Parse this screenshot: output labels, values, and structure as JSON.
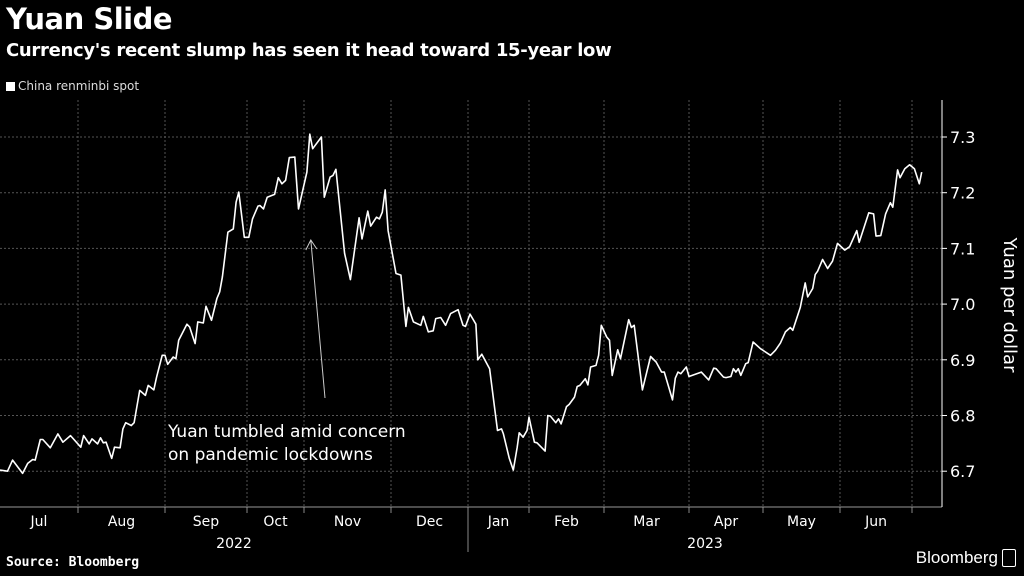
{
  "title": "Yuan Slide",
  "subtitle": "Currency's recent slump has seen it head toward 15-year low",
  "source": "Source: Bloomberg",
  "logo": "Bloomberg",
  "chart_data": {
    "type": "line",
    "title": "Yuan Slide",
    "subtitle": "Currency's recent slump has seen it head toward 15-year low",
    "ylabel": "Yuan per dollar",
    "ylim": [
      6.62,
      7.37
    ],
    "yticks": [
      "6.7",
      "6.8",
      "6.9",
      "7.0",
      "7.1",
      "7.2",
      "7.3"
    ],
    "xticks": [
      {
        "label": "Jul",
        "date": "2022-07"
      },
      {
        "label": "Aug",
        "date": "2022-08"
      },
      {
        "label": "Sep",
        "date": "2022-09"
      },
      {
        "label": "Oct",
        "date": "2022-10"
      },
      {
        "label": "Nov",
        "date": "2022-11"
      },
      {
        "label": "Dec",
        "date": "2022-12"
      },
      {
        "label": "Jan",
        "date": "2023-01"
      },
      {
        "label": "Feb",
        "date": "2023-02"
      },
      {
        "label": "Mar",
        "date": "2023-03"
      },
      {
        "label": "Apr",
        "date": "2023-04"
      },
      {
        "label": "May",
        "date": "2023-05"
      },
      {
        "label": "Jun",
        "date": "2023-06"
      }
    ],
    "years": [
      "2022",
      "2023"
    ],
    "grid": true,
    "axis_side": "right",
    "legend_position": "top-left",
    "annotation": {
      "lines": [
        "Yuan tumbled amid concern",
        "on pandemic lockdowns"
      ],
      "arrow_to_date": "2022-10-27"
    },
    "colors": {
      "background": "#000000",
      "line": "#ffffff",
      "grid": "#555555"
    },
    "series": [
      {
        "name": "China renminbi spot",
        "points": [
          [
            "2022-07-01",
            6.702
          ],
          [
            "2022-07-04",
            6.7
          ],
          [
            "2022-07-06",
            6.72
          ],
          [
            "2022-07-10",
            6.696
          ],
          [
            "2022-07-12",
            6.714
          ],
          [
            "2022-07-14",
            6.721
          ],
          [
            "2022-07-15",
            6.72
          ],
          [
            "2022-07-17",
            6.757
          ],
          [
            "2022-07-18",
            6.757
          ],
          [
            "2022-07-21",
            6.742
          ],
          [
            "2022-07-24",
            6.767
          ],
          [
            "2022-07-26",
            6.752
          ],
          [
            "2022-07-29",
            6.764
          ],
          [
            "2022-08-02",
            6.743
          ],
          [
            "2022-08-03",
            6.764
          ],
          [
            "2022-08-05",
            6.749
          ],
          [
            "2022-08-06",
            6.758
          ],
          [
            "2022-08-08",
            6.749
          ],
          [
            "2022-08-09",
            6.76
          ],
          [
            "2022-08-10",
            6.751
          ],
          [
            "2022-08-11",
            6.752
          ],
          [
            "2022-08-13",
            6.723
          ],
          [
            "2022-08-14",
            6.743
          ],
          [
            "2022-08-16",
            6.742
          ],
          [
            "2022-08-17",
            6.776
          ],
          [
            "2022-08-18",
            6.787
          ],
          [
            "2022-08-20",
            6.782
          ],
          [
            "2022-08-21",
            6.787
          ],
          [
            "2022-08-23",
            6.845
          ],
          [
            "2022-08-25",
            6.836
          ],
          [
            "2022-08-26",
            6.854
          ],
          [
            "2022-08-28",
            6.846
          ],
          [
            "2022-08-29",
            6.869
          ],
          [
            "2022-08-31",
            6.908
          ],
          [
            "2022-09-01",
            6.908
          ],
          [
            "2022-09-02",
            6.892
          ],
          [
            "2022-09-04",
            6.905
          ],
          [
            "2022-09-05",
            6.902
          ],
          [
            "2022-09-06",
            6.935
          ],
          [
            "2022-09-09",
            6.964
          ],
          [
            "2022-09-10",
            6.959
          ],
          [
            "2022-09-12",
            6.929
          ],
          [
            "2022-09-13",
            6.968
          ],
          [
            "2022-09-15",
            6.966
          ],
          [
            "2022-09-16",
            6.996
          ],
          [
            "2022-09-18",
            6.971
          ],
          [
            "2022-09-20",
            7.01
          ],
          [
            "2022-09-21",
            7.022
          ],
          [
            "2022-09-22",
            7.049
          ],
          [
            "2022-09-24",
            7.129
          ],
          [
            "2022-09-26",
            7.135
          ],
          [
            "2022-09-27",
            7.183
          ],
          [
            "2022-09-28",
            7.201
          ],
          [
            "2022-09-30",
            7.12
          ],
          [
            "2022-10-02",
            7.12
          ],
          [
            "2022-10-04",
            7.153
          ],
          [
            "2022-10-07",
            7.176
          ],
          [
            "2022-10-08",
            7.177
          ],
          [
            "2022-10-10",
            7.171
          ],
          [
            "2022-10-12",
            7.192
          ],
          [
            "2022-10-16",
            7.197
          ],
          [
            "2022-10-18",
            7.227
          ],
          [
            "2022-10-20",
            7.216
          ],
          [
            "2022-10-22",
            7.222
          ],
          [
            "2022-10-24",
            7.263
          ],
          [
            "2022-10-27",
            7.264
          ],
          [
            "2022-10-29",
            7.171
          ],
          [
            "2022-11-02",
            7.237
          ],
          [
            "2022-11-03",
            7.305
          ],
          [
            "2022-11-04",
            7.279
          ],
          [
            "2022-11-07",
            7.3
          ],
          [
            "2022-11-08",
            7.192
          ],
          [
            "2022-11-10",
            7.228
          ],
          [
            "2022-11-11",
            7.231
          ],
          [
            "2022-11-12",
            7.242
          ],
          [
            "2022-11-15",
            7.091
          ],
          [
            "2022-11-17",
            7.044
          ],
          [
            "2022-11-20",
            7.155
          ],
          [
            "2022-11-21",
            7.117
          ],
          [
            "2022-11-23",
            7.167
          ],
          [
            "2022-11-24",
            7.14
          ],
          [
            "2022-11-26",
            7.156
          ],
          [
            "2022-11-27",
            7.153
          ],
          [
            "2022-11-28",
            7.165
          ],
          [
            "2022-11-29",
            7.205
          ],
          [
            "2022-11-30",
            7.132
          ],
          [
            "2022-12-03",
            7.055
          ],
          [
            "2022-12-05",
            7.052
          ],
          [
            "2022-12-07",
            6.96
          ],
          [
            "2022-12-08",
            6.994
          ],
          [
            "2022-12-10",
            6.968
          ],
          [
            "2022-12-13",
            6.962
          ],
          [
            "2022-12-14",
            6.978
          ],
          [
            "2022-12-16",
            6.95
          ],
          [
            "2022-12-18",
            6.952
          ],
          [
            "2022-12-19",
            6.974
          ],
          [
            "2022-12-21",
            6.976
          ],
          [
            "2022-12-23",
            6.962
          ],
          [
            "2022-12-25",
            6.983
          ],
          [
            "2022-12-28",
            6.99
          ],
          [
            "2022-12-30",
            6.962
          ],
          [
            "2022-12-31",
            6.96
          ],
          [
            "2023-01-02",
            6.982
          ],
          [
            "2023-01-05",
            6.964
          ],
          [
            "2023-01-06",
            6.9
          ],
          [
            "2023-01-08",
            6.91
          ],
          [
            "2023-01-12",
            6.884
          ],
          [
            "2023-01-16",
            6.773
          ],
          [
            "2023-01-18",
            6.776
          ],
          [
            "2023-01-19",
            6.767
          ],
          [
            "2023-01-22",
            6.723
          ],
          [
            "2023-01-24",
            6.702
          ],
          [
            "2023-01-26",
            6.743
          ],
          [
            "2023-01-27",
            6.769
          ],
          [
            "2023-01-29",
            6.761
          ],
          [
            "2023-01-31",
            6.773
          ],
          [
            "2023-02-01",
            6.797
          ],
          [
            "2023-02-03",
            6.752
          ],
          [
            "2023-02-04",
            6.751
          ],
          [
            "2023-02-07",
            6.736
          ],
          [
            "2023-02-08",
            6.8
          ],
          [
            "2023-02-09",
            6.799
          ],
          [
            "2023-02-11",
            6.787
          ],
          [
            "2023-02-12",
            6.794
          ],
          [
            "2023-02-13",
            6.785
          ],
          [
            "2023-02-15",
            6.816
          ],
          [
            "2023-02-16",
            6.82
          ],
          [
            "2023-02-18",
            6.833
          ],
          [
            "2023-02-19",
            6.852
          ],
          [
            "2023-02-20",
            6.854
          ],
          [
            "2023-02-22",
            6.866
          ],
          [
            "2023-02-23",
            6.855
          ],
          [
            "2023-02-24",
            6.887
          ],
          [
            "2023-02-26",
            6.89
          ],
          [
            "2023-02-27",
            6.908
          ],
          [
            "2023-02-28",
            6.962
          ],
          [
            "2023-03-02",
            6.941
          ],
          [
            "2023-03-03",
            6.935
          ],
          [
            "2023-03-04",
            6.872
          ],
          [
            "2023-03-06",
            6.918
          ],
          [
            "2023-03-07",
            6.902
          ],
          [
            "2023-03-10",
            6.972
          ],
          [
            "2023-03-11",
            6.958
          ],
          [
            "2023-03-12",
            6.962
          ],
          [
            "2023-03-15",
            6.846
          ],
          [
            "2023-03-18",
            6.906
          ],
          [
            "2023-03-20",
            6.896
          ],
          [
            "2023-03-22",
            6.878
          ],
          [
            "2023-03-23",
            6.878
          ],
          [
            "2023-03-26",
            6.828
          ],
          [
            "2023-03-27",
            6.867
          ],
          [
            "2023-03-28",
            6.878
          ],
          [
            "2023-03-29",
            6.875
          ],
          [
            "2023-03-31",
            6.887
          ],
          [
            "2023-04-01",
            6.87
          ],
          [
            "2023-04-06",
            6.878
          ],
          [
            "2023-04-09",
            6.864
          ],
          [
            "2023-04-11",
            6.885
          ],
          [
            "2023-04-12",
            6.884
          ],
          [
            "2023-04-15",
            6.869
          ],
          [
            "2023-04-16",
            6.868
          ],
          [
            "2023-04-18",
            6.87
          ],
          [
            "2023-04-19",
            6.884
          ],
          [
            "2023-04-20",
            6.878
          ],
          [
            "2023-04-21",
            6.884
          ],
          [
            "2023-04-22",
            6.872
          ],
          [
            "2023-04-24",
            6.893
          ],
          [
            "2023-04-25",
            6.895
          ],
          [
            "2023-04-27",
            6.932
          ],
          [
            "2023-04-30",
            6.92
          ],
          [
            "2023-05-04",
            6.908
          ],
          [
            "2023-05-06",
            6.917
          ],
          [
            "2023-05-08",
            6.93
          ],
          [
            "2023-05-10",
            6.95
          ],
          [
            "2023-05-12",
            6.958
          ],
          [
            "2023-05-13",
            6.953
          ],
          [
            "2023-05-16",
            6.994
          ],
          [
            "2023-05-18",
            7.038
          ],
          [
            "2023-05-19",
            7.013
          ],
          [
            "2023-05-21",
            7.028
          ],
          [
            "2023-05-22",
            7.053
          ],
          [
            "2023-05-23",
            7.059
          ],
          [
            "2023-05-25",
            7.08
          ],
          [
            "2023-05-27",
            7.064
          ],
          [
            "2023-05-29",
            7.077
          ],
          [
            "2023-05-31",
            7.109
          ],
          [
            "2023-06-03",
            7.097
          ],
          [
            "2023-06-05",
            7.103
          ],
          [
            "2023-06-08",
            7.132
          ],
          [
            "2023-06-09",
            7.111
          ],
          [
            "2023-06-13",
            7.164
          ],
          [
            "2023-06-15",
            7.162
          ],
          [
            "2023-06-16",
            7.122
          ],
          [
            "2023-06-18",
            7.123
          ],
          [
            "2023-06-20",
            7.162
          ],
          [
            "2023-06-22",
            7.182
          ],
          [
            "2023-06-23",
            7.174
          ],
          [
            "2023-06-25",
            7.241
          ],
          [
            "2023-06-26",
            7.227
          ],
          [
            "2023-06-28",
            7.243
          ],
          [
            "2023-06-30",
            7.25
          ],
          [
            "2023-07-02",
            7.243
          ],
          [
            "2023-07-04",
            7.216
          ],
          [
            "2023-07-05",
            7.237
          ]
        ]
      }
    ]
  }
}
